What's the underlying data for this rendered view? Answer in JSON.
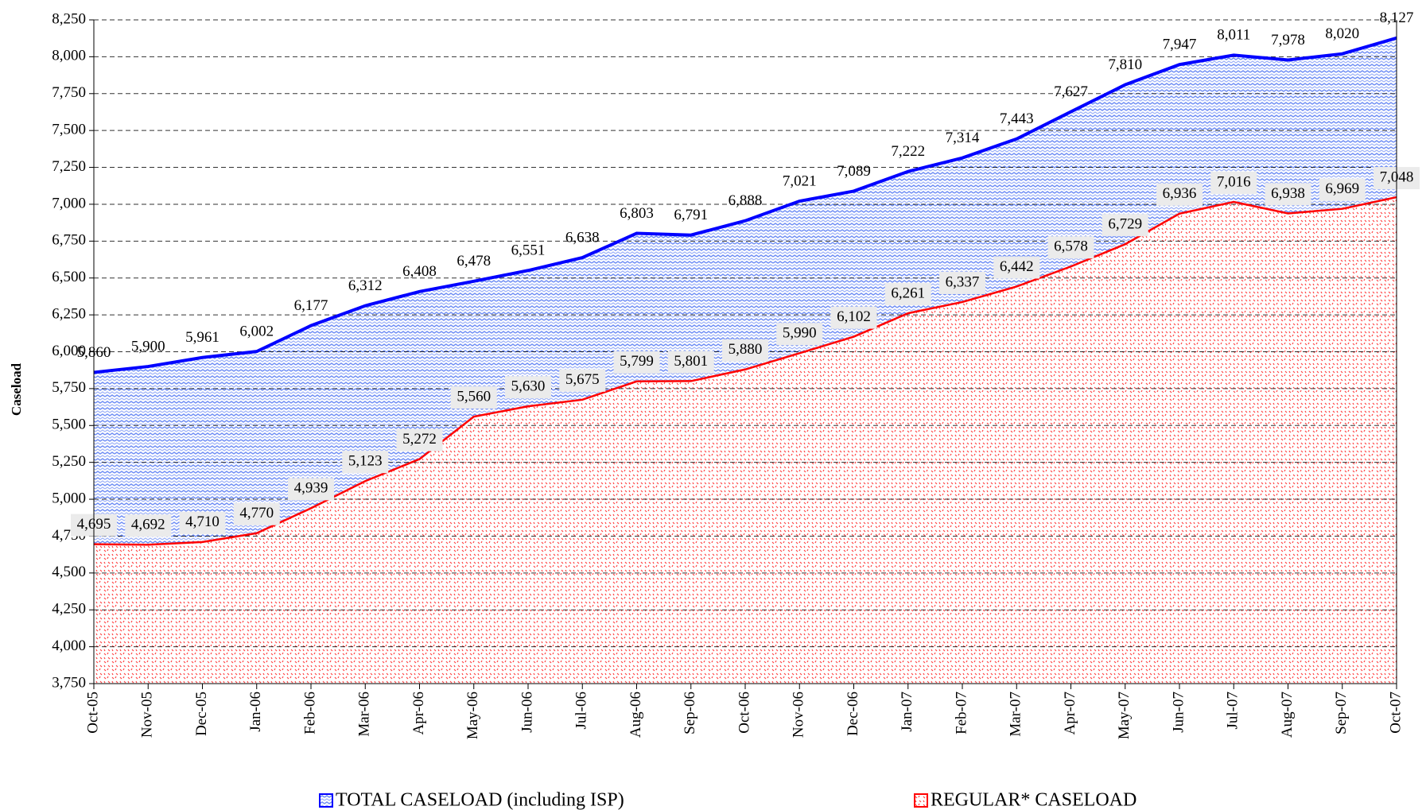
{
  "chart_data": {
    "type": "area",
    "y_label": "Caseload",
    "categories": [
      "Oct-05",
      "Nov-05",
      "Dec-05",
      "Jan-06",
      "Feb-06",
      "Mar-06",
      "Apr-06",
      "May-06",
      "Jun-06",
      "Jul-06",
      "Aug-06",
      "Sep-06",
      "Oct-06",
      "Nov-06",
      "Dec-06",
      "Jan-07",
      "Feb-07",
      "Mar-07",
      "Apr-07",
      "May-07",
      "Jun-07",
      "Jul-07",
      "Aug-07",
      "Sep-07",
      "Oct-07"
    ],
    "series": [
      {
        "name": "TOTAL CASELOAD (including ISP)",
        "color": "#0000ff",
        "values": [
          5860,
          5900,
          5961,
          6002,
          6177,
          6312,
          6408,
          6478,
          6551,
          6638,
          6803,
          6791,
          6888,
          7021,
          7089,
          7222,
          7314,
          7443,
          7627,
          7810,
          7947,
          8011,
          7978,
          8020,
          8127
        ],
        "value_labels": [
          "5,860",
          "5,900",
          "5,961",
          "6,002",
          "6,177",
          "6,312",
          "6,408",
          "6,478",
          "6,551",
          "6,638",
          "6,803",
          "6,791",
          "6,888",
          "7,021",
          "7,089",
          "7,222",
          "7,314",
          "7,443",
          "7,627",
          "7,810",
          "7,947",
          "8,011",
          "7,978",
          "8,020",
          "8,127"
        ]
      },
      {
        "name": "REGULAR* CASELOAD",
        "color": "#ff0000",
        "values": [
          4695,
          4692,
          4710,
          4770,
          4939,
          5123,
          5272,
          5560,
          5630,
          5675,
          5799,
          5801,
          5880,
          5990,
          6102,
          6261,
          6337,
          6442,
          6578,
          6729,
          6936,
          7016,
          6938,
          6969,
          7048
        ],
        "value_labels": [
          "4,695",
          "4,692",
          "4,710",
          "4,770",
          "4,939",
          "5,123",
          "5,272",
          "5,560",
          "5,630",
          "5,675",
          "5,799",
          "5,801",
          "5,880",
          "5,990",
          "6,102",
          "6,261",
          "6,337",
          "6,442",
          "6,578",
          "6,729",
          "6,936",
          "7,016",
          "6,938",
          "6,969",
          "7,048"
        ]
      }
    ],
    "ylim": [
      3750,
      8250
    ],
    "yticks": [
      {
        "value": 3750,
        "label": "3,750"
      },
      {
        "value": 4000,
        "label": "4,000"
      },
      {
        "value": 4250,
        "label": "4,250"
      },
      {
        "value": 4500,
        "label": "4,500"
      },
      {
        "value": 4750,
        "label": "4,750"
      },
      {
        "value": 5000,
        "label": "5,000"
      },
      {
        "value": 5250,
        "label": "5,250"
      },
      {
        "value": 5500,
        "label": "5,500"
      },
      {
        "value": 5750,
        "label": "5,750"
      },
      {
        "value": 6000,
        "label": "6,000"
      },
      {
        "value": 6250,
        "label": "6,250"
      },
      {
        "value": 6500,
        "label": "6,500"
      },
      {
        "value": 6750,
        "label": "6,750"
      },
      {
        "value": 7000,
        "label": "7,000"
      },
      {
        "value": 7250,
        "label": "7,250"
      },
      {
        "value": 7500,
        "label": "7,500"
      },
      {
        "value": 7750,
        "label": "7,750"
      },
      {
        "value": 8000,
        "label": "8,000"
      },
      {
        "value": 8250,
        "label": "8,250"
      }
    ],
    "grid": true
  }
}
